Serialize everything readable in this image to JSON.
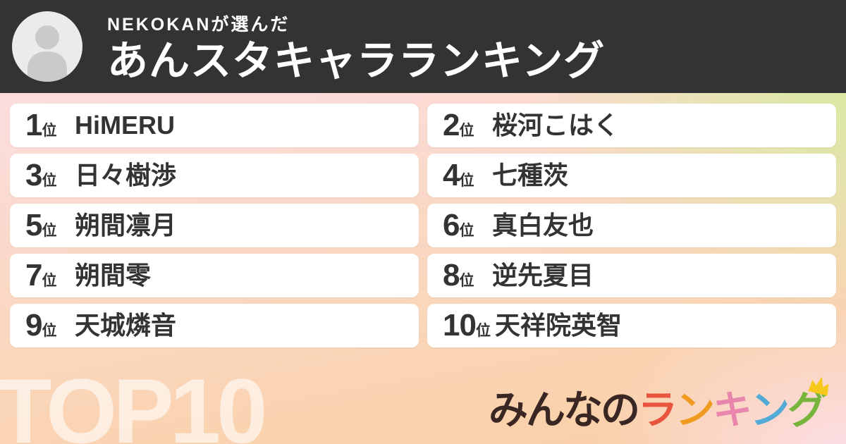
{
  "header": {
    "author_line": "NEKOKANが選んだ",
    "title": "あんスタキャラランキング"
  },
  "ranking": {
    "rank_suffix": "位",
    "items": [
      {
        "rank": "1",
        "name": "HiMERU"
      },
      {
        "rank": "2",
        "name": "桜河こはく"
      },
      {
        "rank": "3",
        "name": "日々樹渉"
      },
      {
        "rank": "4",
        "name": "七種茨"
      },
      {
        "rank": "5",
        "name": "朔間凛月"
      },
      {
        "rank": "6",
        "name": "真白友也"
      },
      {
        "rank": "7",
        "name": "朔間零"
      },
      {
        "rank": "8",
        "name": "逆先夏目"
      },
      {
        "rank": "9",
        "name": "天城燐音"
      },
      {
        "rank": "10",
        "name": "天祥院英智"
      }
    ]
  },
  "footer": {
    "watermark": "TOP10"
  },
  "logo": {
    "name": "みんなのランキング",
    "characters": [
      {
        "char": "み",
        "color": "#3a2723"
      },
      {
        "char": "ん",
        "color": "#3a2723"
      },
      {
        "char": "な",
        "color": "#3a2723"
      },
      {
        "char": "の",
        "color": "#3a2723"
      },
      {
        "char": "ラ",
        "color": "#e8543d"
      },
      {
        "char": "ン",
        "color": "#f09b1f"
      },
      {
        "char": "キ",
        "color": "#e886ae"
      },
      {
        "char": "ン",
        "color": "#52aad6"
      },
      {
        "char": "グ",
        "color": "#76b43c"
      }
    ],
    "crown_color": "#f6c91c"
  },
  "colors": {
    "header_bg": "#333333",
    "card_bg": "#ffffff",
    "text": "#333333",
    "avatar_bg": "#ebebeb",
    "avatar_icon": "#c9cac9",
    "gradient_top_left": "#fbdcde",
    "gradient_top_right": "#d6eb9e",
    "gradient_bottom_left": "#f9cfa4",
    "gradient_bottom_right": "#fcdee6",
    "watermark": "rgba(255,255,255,0.6)"
  }
}
